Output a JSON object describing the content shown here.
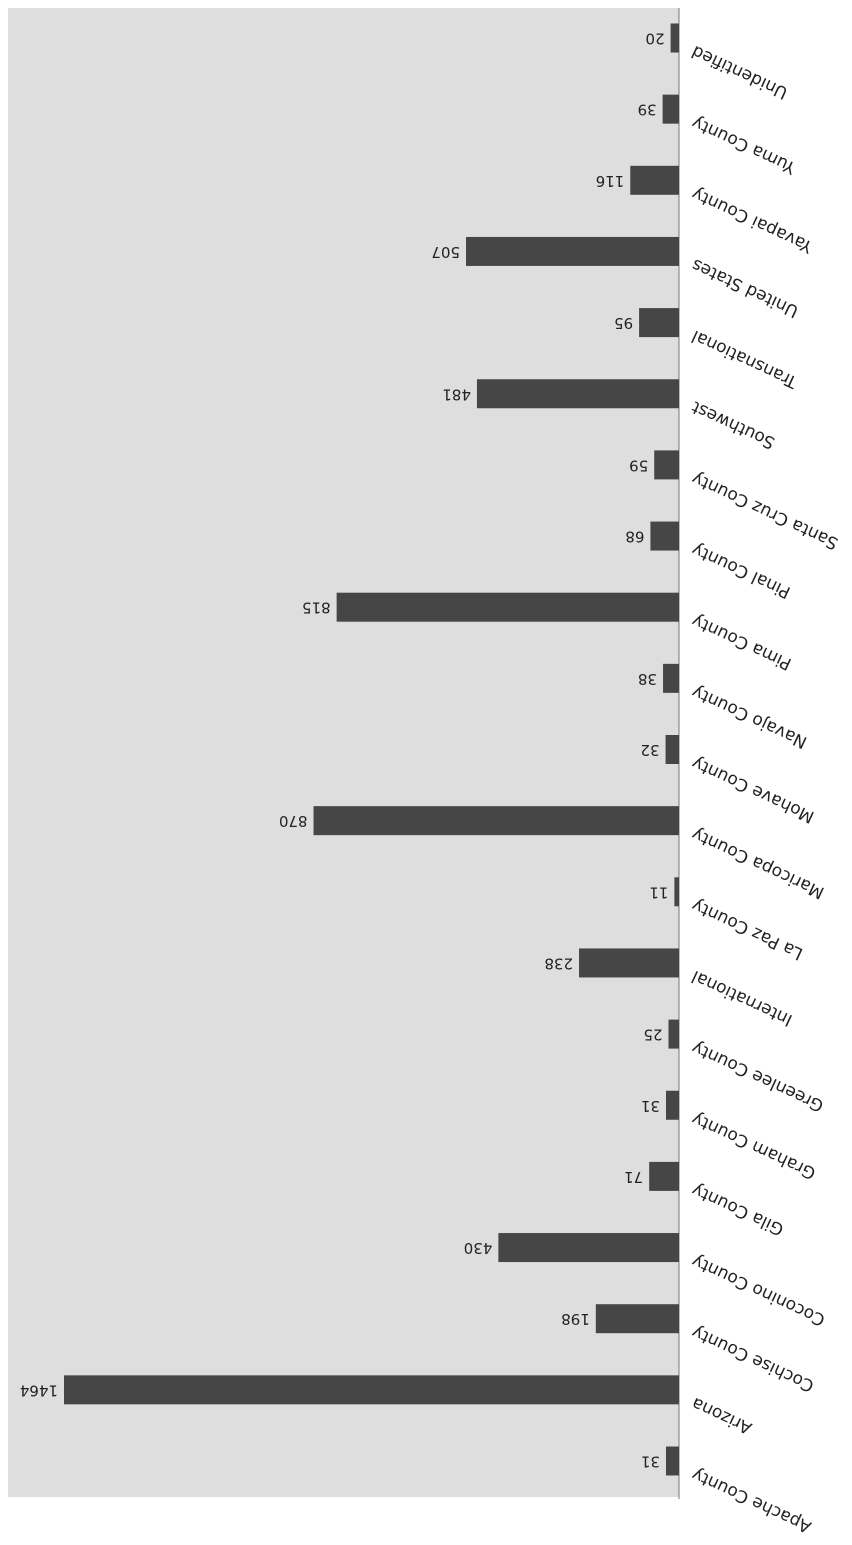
{
  "chart_data": {
    "type": "bar",
    "orientation": "horizontal",
    "categories": [
      "Apache County",
      "Arizona",
      "Cochise County",
      "Coconino County",
      "Gila County",
      "Graham County",
      "Greenlee County",
      "International",
      "La Paz County",
      "Maricopa County",
      "Mohave County",
      "Navajo County",
      "Pima County",
      "Pinal County",
      "Santa Cruz County",
      "Southwest",
      "Transnational",
      "United States",
      "Yavapai County",
      "Yuma County",
      "Unidentified"
    ],
    "values": [
      31,
      1464,
      198,
      430,
      71,
      31,
      25,
      238,
      11,
      870,
      32,
      38,
      815,
      68,
      59,
      481,
      95,
      507,
      116,
      39,
      20
    ],
    "xlim": [
      0,
      1500
    ],
    "grid": false,
    "legend": "none",
    "rendering": "rotated 180 degrees",
    "colors": {
      "plot_background": "#dedede",
      "bar": "#464646",
      "text": "#222222",
      "axis": "#777777"
    }
  }
}
